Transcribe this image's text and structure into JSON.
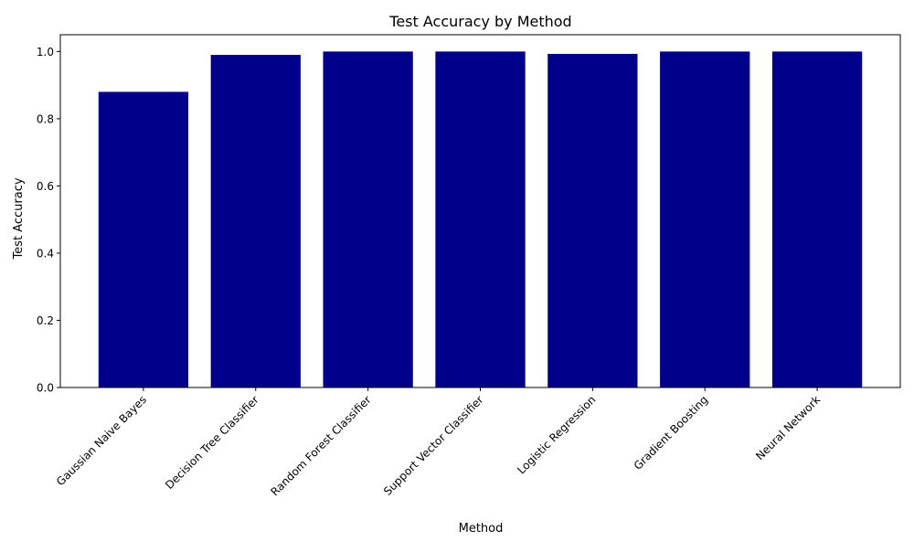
{
  "chart_data": {
    "type": "bar",
    "title": "Test Accuracy by Method",
    "xlabel": "Method",
    "ylabel": "Test Accuracy",
    "categories": [
      "Gaussian Naive Bayes",
      "Decision Tree Classifier",
      "Random Forest Classifier",
      "Support Vector Classifier",
      "Logistic Regression",
      "Gradient Boosting",
      "Neural Network"
    ],
    "values": [
      0.88,
      0.99,
      1.0,
      1.0,
      0.993,
      1.0,
      1.0
    ],
    "ylim": [
      0,
      1.05
    ],
    "yticks": [
      "0.0",
      "0.2",
      "0.4",
      "0.6",
      "0.8",
      "1.0"
    ],
    "bar_color": "#00008b",
    "grid": false,
    "legend": "none"
  }
}
